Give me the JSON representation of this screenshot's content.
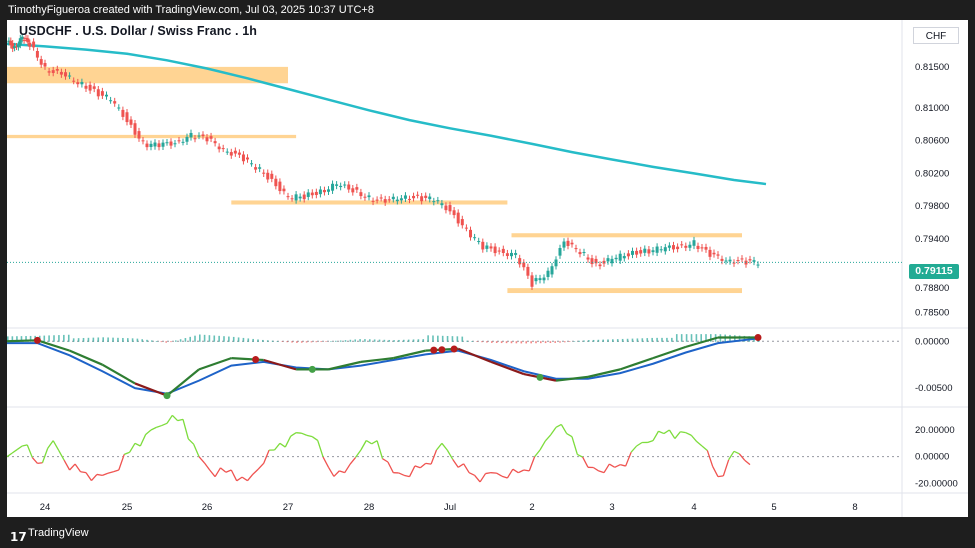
{
  "header": {
    "attribution": "TimothyFigueroa created with TradingView.com, Jul 03, 2025 10:37 UTC+8"
  },
  "symbol": {
    "title": "USDCHF . U.S. Dollar / Swiss Franc . 1h",
    "currency": "CHF",
    "last_price": "0.79115"
  },
  "footer": {
    "brand": "TradingView"
  },
  "colors": {
    "up": "#26a69a",
    "down": "#ef5350",
    "ma": "#26bcc8",
    "zone": "#ffcc80",
    "macd_fast": "#2e7d32",
    "macd_signal": "#1e63c8",
    "osc_up": "#7ddc3c",
    "osc_down": "#ef5350"
  },
  "chart_data": [
    {
      "type": "line",
      "name": "price",
      "ylim": [
        0.7835,
        0.8195
      ],
      "y_ticks": [
        "0.81500",
        "0.81000",
        "0.80600",
        "0.80200",
        "0.79800",
        "0.79400",
        "0.78800",
        "0.78500"
      ],
      "x_ticks": [
        "24",
        "25",
        "26",
        "27",
        "28",
        "Jul",
        "2",
        "3",
        "4",
        "5",
        "8"
      ],
      "series": [
        {
          "name": "",
          "x": [
            23.5,
            23.6,
            23.7,
            23.8,
            24.0,
            24.2,
            24.4,
            24.6,
            24.8,
            25.0,
            25.2,
            25.4,
            25.6,
            25.8,
            26.0,
            26.2,
            26.4,
            26.6,
            26.8,
            27.0,
            27.2,
            27.4,
            27.6,
            27.8,
            28.0,
            28.2,
            28.4,
            28.6,
            28.8,
            29.0,
            29.2,
            29.4,
            29.6,
            29.8,
            30.0,
            30.2,
            30.4,
            30.6,
            30.8,
            31.0,
            31.2,
            31.4,
            31.6,
            31.8,
            32.0,
            32.2,
            32.4,
            32.6,
            32.8
          ],
          "y": [
            0.818,
            0.8174,
            0.8185,
            0.8178,
            0.8148,
            0.814,
            0.8132,
            0.812,
            0.811,
            0.8085,
            0.8056,
            0.8054,
            0.8058,
            0.8066,
            0.8062,
            0.805,
            0.804,
            0.8028,
            0.8012,
            0.799,
            0.7992,
            0.7998,
            0.8006,
            0.8,
            0.799,
            0.7985,
            0.7992,
            0.799,
            0.7988,
            0.7975,
            0.795,
            0.793,
            0.7925,
            0.792,
            0.7885,
            0.79,
            0.7935,
            0.7925,
            0.7908,
            0.7915,
            0.7922,
            0.7925,
            0.7928,
            0.793,
            0.7935,
            0.792,
            0.7915,
            0.7912,
            0.79115
          ]
        },
        {
          "name": "",
          "x": [
            23.5,
            24.0,
            24.5,
            25.0,
            25.5,
            26.0,
            26.5,
            27.0,
            27.5,
            28.0,
            28.5,
            29.0,
            29.5,
            30.0,
            30.5,
            31.0,
            31.5,
            32.0,
            32.5,
            32.9
          ],
          "y": [
            0.8178,
            0.8175,
            0.8171,
            0.8166,
            0.8158,
            0.8148,
            0.8136,
            0.8123,
            0.811,
            0.8097,
            0.8085,
            0.8075,
            0.8066,
            0.8056,
            0.8046,
            0.8037,
            0.8028,
            0.802,
            0.8012,
            0.8007
          ]
        }
      ],
      "zones": [
        {
          "x": [
            23.5,
            27.0
          ],
          "y": [
            0.813,
            0.815
          ]
        },
        {
          "x": [
            23.5,
            27.1
          ],
          "y": [
            0.8063,
            0.8067
          ]
        },
        {
          "x": [
            26.3,
            29.7
          ],
          "y": [
            0.7982,
            0.7987
          ]
        },
        {
          "x": [
            29.75,
            32.6
          ],
          "y": [
            0.7942,
            0.7947
          ]
        },
        {
          "x": [
            29.7,
            32.6
          ],
          "y": [
            0.7874,
            0.788
          ]
        }
      ]
    },
    {
      "type": "line",
      "name": "macd",
      "ylim": [
        -0.0068,
        0.0012
      ],
      "y_ticks": [
        "0.00000",
        "-0.00500"
      ],
      "series": [
        {
          "name": "",
          "x": [
            23.5,
            23.9,
            24.3,
            24.7,
            25.1,
            25.5,
            25.9,
            26.3,
            26.7,
            27.1,
            27.5,
            27.9,
            28.3,
            28.7,
            29.1,
            29.5,
            29.9,
            30.3,
            30.7,
            31.1,
            31.5,
            31.9,
            32.3,
            32.8
          ],
          "y": [
            0.0,
            0.0001,
            -0.001,
            -0.0025,
            -0.0045,
            -0.0058,
            -0.003,
            -0.0018,
            -0.002,
            -0.003,
            -0.003,
            -0.0022,
            -0.0018,
            -0.001,
            -0.0008,
            -0.0022,
            -0.0035,
            -0.0042,
            -0.0038,
            -0.003,
            -0.0018,
            -0.0006,
            0.0004,
            0.0004
          ]
        },
        {
          "name": "",
          "x": [
            23.5,
            23.9,
            24.3,
            24.7,
            25.1,
            25.5,
            25.9,
            26.3,
            26.7,
            27.1,
            27.5,
            27.9,
            28.3,
            28.7,
            29.1,
            29.5,
            29.9,
            30.3,
            30.7,
            31.1,
            31.5,
            31.9,
            32.3,
            32.8
          ],
          "y": [
            -0.0002,
            -0.0002,
            -0.0015,
            -0.0032,
            -0.005,
            -0.0056,
            -0.0042,
            -0.0026,
            -0.0022,
            -0.0028,
            -0.003,
            -0.0026,
            -0.002,
            -0.0014,
            -0.001,
            -0.002,
            -0.0032,
            -0.004,
            -0.004,
            -0.0034,
            -0.0024,
            -0.0012,
            -0.0002,
            0.0003
          ]
        }
      ]
    },
    {
      "type": "line",
      "name": "oscillator",
      "ylim": [
        -25,
        35
      ],
      "y_ticks": [
        "20.00000",
        "0.00000",
        "-20.00000"
      ],
      "series": [
        {
          "name": "",
          "x": [
            23.5,
            23.7,
            23.9,
            24.1,
            24.3,
            24.5,
            24.7,
            24.9,
            25.1,
            25.3,
            25.5,
            25.7,
            25.9,
            26.1,
            26.3,
            26.5,
            26.7,
            26.9,
            27.1,
            27.3,
            27.5,
            27.7,
            27.9,
            28.1,
            28.3,
            28.5,
            28.7,
            28.9,
            29.1,
            29.3,
            29.5,
            29.7,
            29.9,
            30.1,
            30.3,
            30.5,
            30.7,
            30.9,
            31.1,
            31.3,
            31.5,
            31.7,
            31.9,
            32.1,
            32.3,
            32.5,
            32.7
          ],
          "y": [
            0,
            8,
            -5,
            12,
            -10,
            -12,
            -14,
            -10,
            10,
            20,
            25,
            28,
            0,
            -15,
            -10,
            -18,
            -5,
            10,
            18,
            15,
            -8,
            -12,
            5,
            12,
            -12,
            -15,
            -5,
            10,
            -8,
            -14,
            -12,
            -16,
            -10,
            5,
            22,
            15,
            -8,
            -12,
            -6,
            8,
            12,
            20,
            18,
            8,
            -15,
            4,
            -6
          ]
        }
      ]
    }
  ]
}
